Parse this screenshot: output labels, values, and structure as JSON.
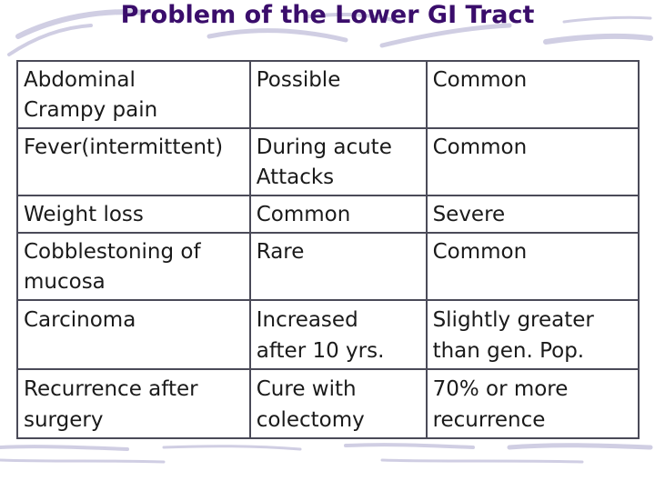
{
  "title": "Problem of the Lower GI Tract",
  "table": {
    "rows": [
      {
        "c1": [
          "Abdominal",
          "Crampy pain"
        ],
        "c2": [
          "Possible"
        ],
        "c3": [
          "Common"
        ]
      },
      {
        "c1": [
          "Fever(intermittent)"
        ],
        "c2": [
          "During acute",
          "Attacks"
        ],
        "c3": [
          "Common"
        ]
      },
      {
        "c1": [
          "Weight loss"
        ],
        "c2": [
          "Common"
        ],
        "c3": [
          "Severe"
        ]
      },
      {
        "c1": [
          "Cobblestoning of",
          "mucosa"
        ],
        "c2": [
          "Rare"
        ],
        "c3": [
          "Common"
        ]
      },
      {
        "c1": [
          "Carcinoma"
        ],
        "c2": [
          "Increased",
          "after 10 yrs."
        ],
        "c3": [
          "Slightly greater",
          "than gen. Pop."
        ]
      },
      {
        "c1": [
          "Recurrence after",
          "surgery"
        ],
        "c2": [
          "Cure with",
          "colectomy"
        ],
        "c3": [
          "70% or more",
          "recurrence"
        ]
      }
    ]
  },
  "colors": {
    "title": "#3a0d6b",
    "border": "#4a4a58",
    "decor": "#c8c6df"
  }
}
